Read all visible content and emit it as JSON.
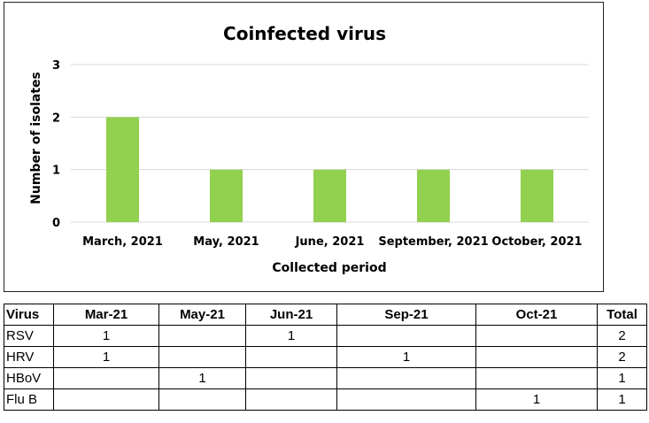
{
  "chart_data": {
    "type": "bar",
    "title": "Coinfected virus",
    "xlabel": "Collected period",
    "ylabel": "Number of isolates",
    "categories": [
      "March, 2021",
      "May, 2021",
      "June, 2021",
      "September, 2021",
      "October, 2021"
    ],
    "values": [
      2,
      1,
      1,
      1,
      1
    ],
    "ylim": [
      0,
      3
    ],
    "yticks": [
      "0",
      "1",
      "2",
      "3"
    ],
    "grid": true,
    "bar_color": "#92d050"
  },
  "table": {
    "headers": [
      "Virus",
      "Mar-21",
      "May-21",
      "Jun-21",
      "Sep-21",
      "Oct-21",
      "Total"
    ],
    "rows": [
      [
        "RSV",
        "1",
        "",
        "1",
        "",
        "",
        "2"
      ],
      [
        "HRV",
        "1",
        "",
        "",
        "1",
        "",
        "2"
      ],
      [
        "HBoV",
        "",
        "1",
        "",
        "",
        "",
        "1"
      ],
      [
        "Flu B",
        "",
        "",
        "",
        "",
        "1",
        "1"
      ]
    ]
  }
}
